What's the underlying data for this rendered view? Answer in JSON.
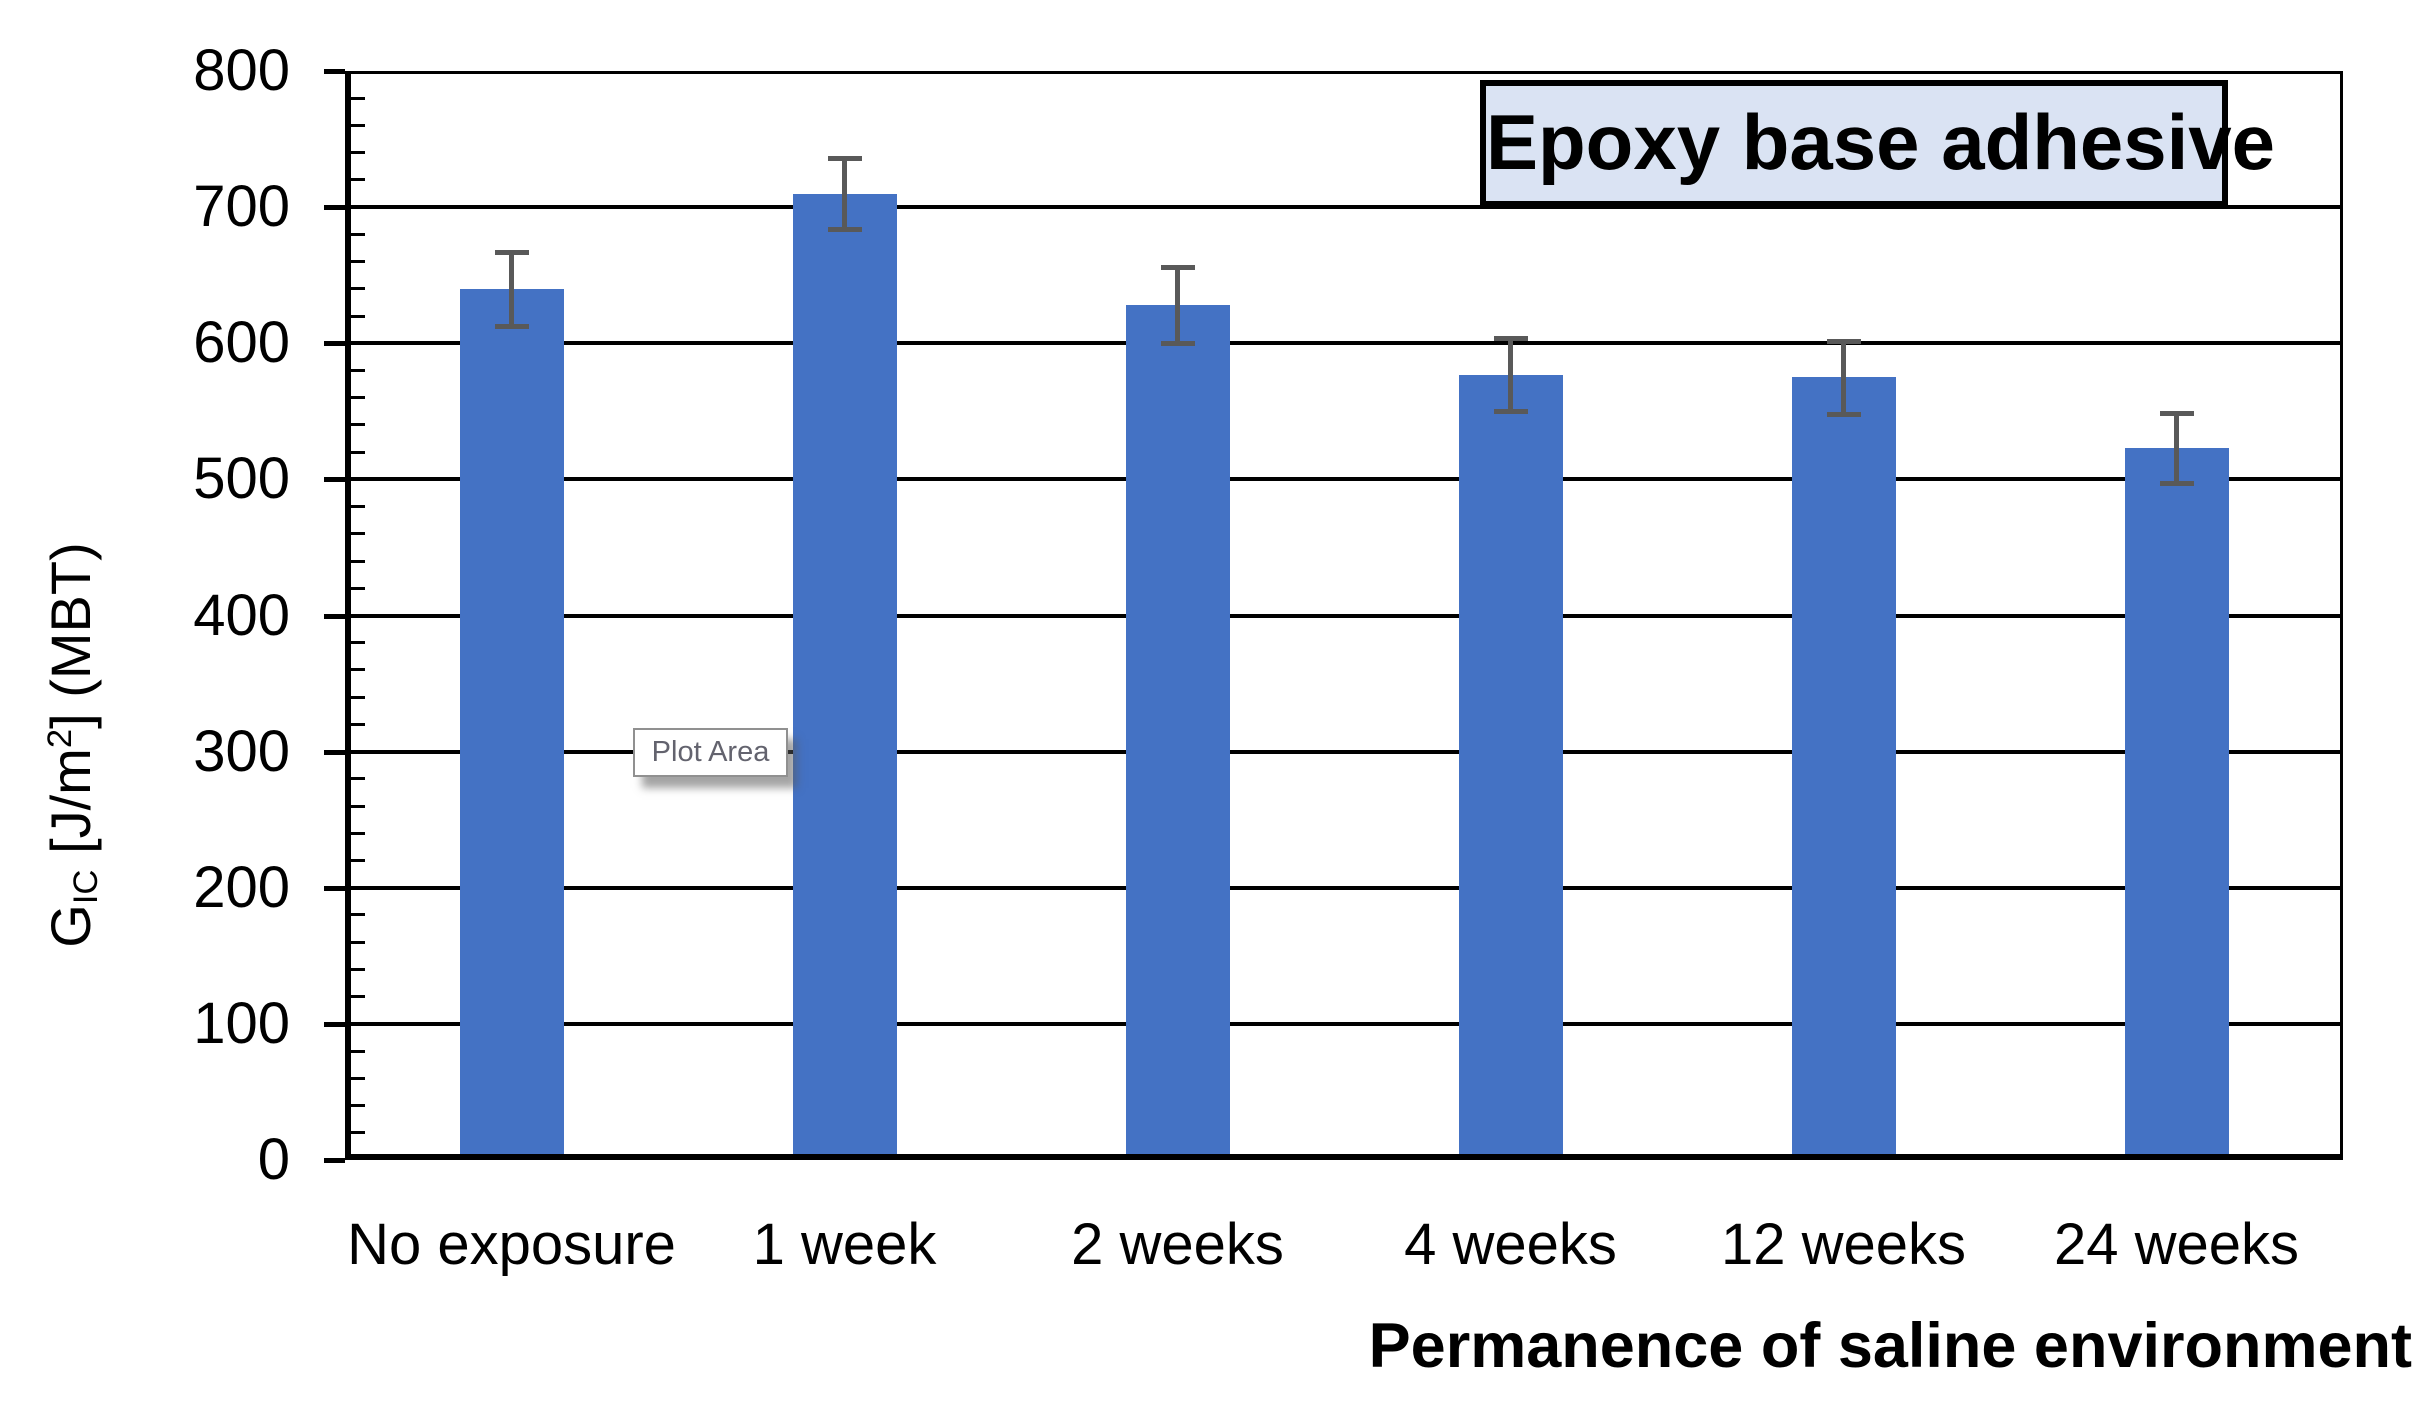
{
  "chart_data": {
    "type": "bar",
    "title": "Epoxy base adhesive",
    "categories": [
      "No exposure",
      "1 week",
      "2 weeks",
      "4 weeks",
      "12 weeks",
      "24 weeks"
    ],
    "values": [
      640,
      710,
      628,
      577,
      575,
      523
    ],
    "errors": [
      27,
      26,
      28,
      27,
      27,
      26
    ],
    "xlabel": "Permanence of saline environment",
    "ylabel_parts": {
      "base": "G",
      "sub": "IC",
      "mid": " [J/m",
      "sup": "2",
      "end": "] (MBT)"
    },
    "ylim": [
      0,
      800
    ],
    "ytick_step": 100,
    "minor_tick_step": 20,
    "yticks": [
      "0",
      "100",
      "200",
      "300",
      "400",
      "500",
      "600",
      "700",
      "800"
    ],
    "grid": true,
    "legend": "none",
    "tooltip_label": "Plot Area",
    "colors": {
      "bar": "#4472C4",
      "error_bar": "#595959",
      "gridline": "#000000",
      "title_bg": "#DAE3F3",
      "title_border": "#000000",
      "tooltip_text": "#63636E",
      "tooltip_border": "#909090",
      "axis_text": "#000000"
    }
  }
}
